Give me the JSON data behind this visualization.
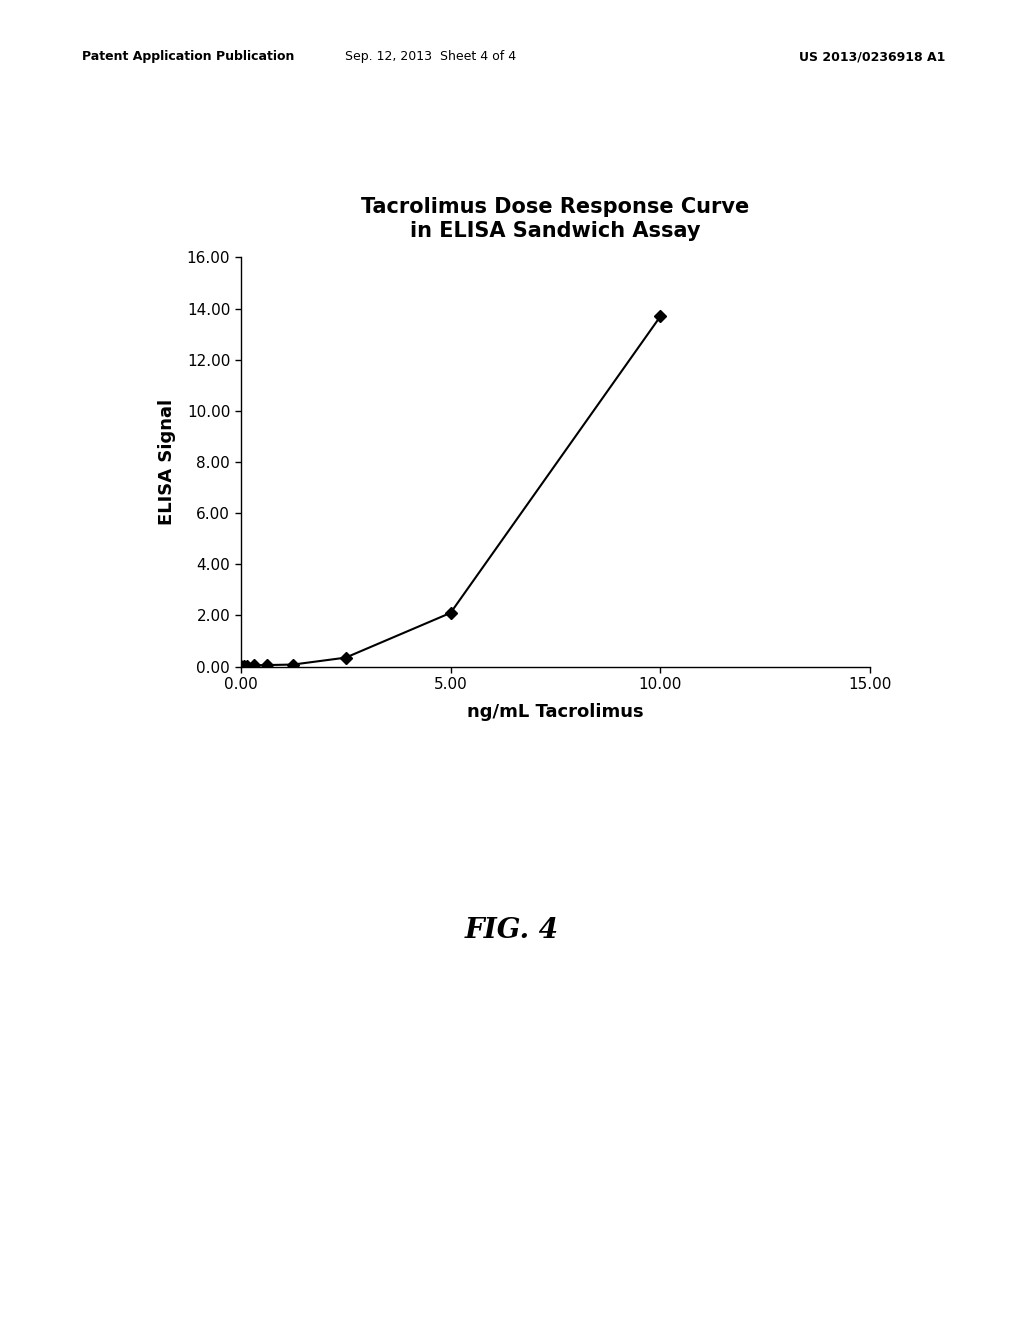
{
  "title_line1": "Tacrolimus Dose Response Curve",
  "title_line2": "in ELISA Sandwich Assay",
  "xlabel": "ng/mL Tacrolimus",
  "ylabel": "ELISA Signal",
  "x_data": [
    0.0,
    0.078,
    0.156,
    0.313,
    0.625,
    1.25,
    2.5,
    5.0,
    10.0
  ],
  "y_data": [
    0.02,
    0.03,
    0.04,
    0.05,
    0.06,
    0.08,
    0.35,
    2.1,
    13.7
  ],
  "xlim": [
    0.0,
    15.0
  ],
  "ylim": [
    0.0,
    16.0
  ],
  "xticks": [
    0.0,
    5.0,
    10.0,
    15.0
  ],
  "yticks": [
    0.0,
    2.0,
    4.0,
    6.0,
    8.0,
    10.0,
    12.0,
    14.0,
    16.0
  ],
  "line_color": "#000000",
  "marker": "D",
  "marker_size": 6,
  "marker_facecolor": "#000000",
  "background_color": "#ffffff",
  "title_fontsize": 15,
  "axis_label_fontsize": 13,
  "tick_fontsize": 11,
  "header_left": "Patent Application Publication",
  "header_mid": "Sep. 12, 2013  Sheet 4 of 4",
  "header_right": "US 2013/0236918 A1",
  "fig_label": "FIG. 4",
  "fig_label_fontsize": 20
}
